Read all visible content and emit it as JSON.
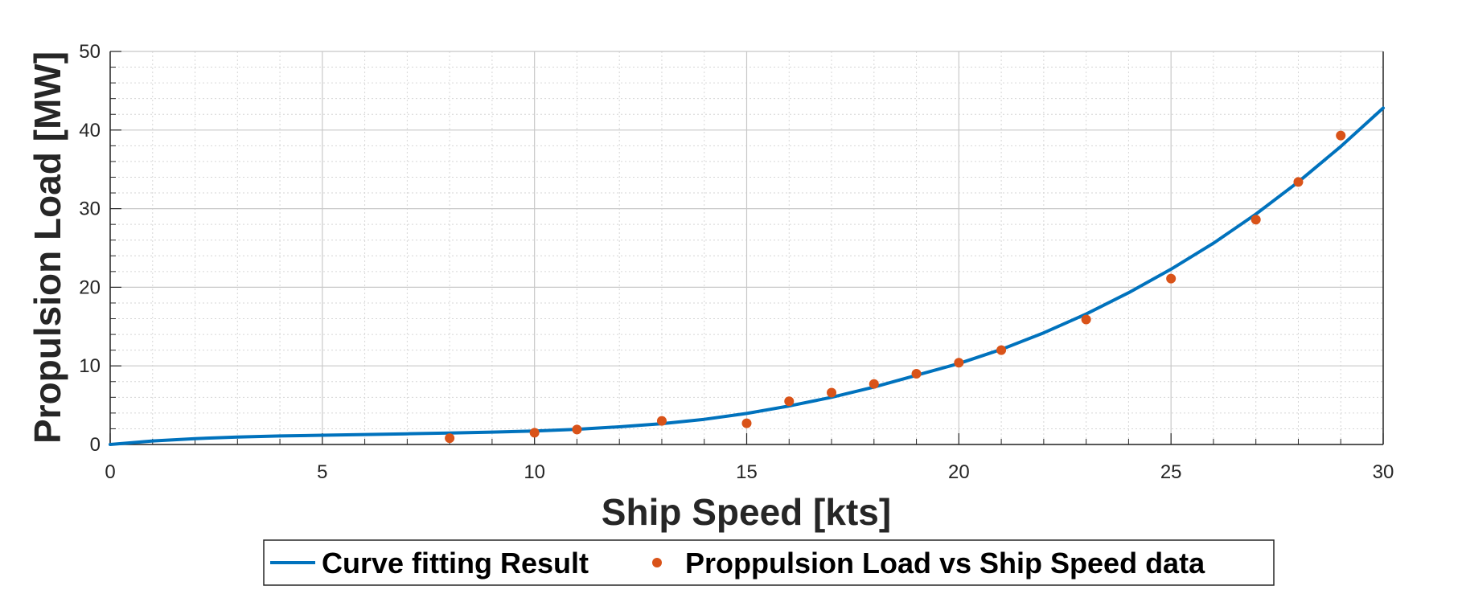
{
  "chart_data": {
    "type": "line",
    "xlabel": "Ship Speed [kts]",
    "ylabel": "Propulsion Load [MW]",
    "xlim": [
      0,
      30
    ],
    "ylim": [
      0,
      50
    ],
    "x_ticks": [
      "0",
      "5",
      "10",
      "15",
      "20",
      "25",
      "30"
    ],
    "y_ticks": [
      "0",
      "10",
      "20",
      "30",
      "40",
      "50"
    ],
    "grid": true,
    "minor_grid": true,
    "legend_position": "bottom-outside",
    "series": [
      {
        "name": "Curve fitting Result",
        "kind": "line",
        "color": "#0072BD",
        "x": [
          0,
          1,
          2,
          3,
          4,
          5,
          6,
          7,
          8,
          9,
          10,
          11,
          12,
          13,
          14,
          15,
          16,
          17,
          18,
          19,
          20,
          21,
          22,
          23,
          24,
          25,
          26,
          27,
          28,
          29,
          30
        ],
        "y": [
          0,
          0.45,
          0.75,
          0.95,
          1.08,
          1.18,
          1.27,
          1.36,
          1.46,
          1.57,
          1.72,
          1.93,
          2.25,
          2.65,
          3.2,
          3.95,
          4.9,
          6.0,
          7.3,
          8.8,
          10.3,
          12.1,
          14.2,
          16.6,
          19.3,
          22.3,
          25.6,
          29.3,
          33.4,
          37.9,
          42.8
        ]
      },
      {
        "name": "Proppulsion Load vs Ship Speed data",
        "kind": "scatter",
        "color": "#D95319",
        "x": [
          8,
          10,
          11,
          13,
          15,
          16,
          17,
          18,
          19,
          20,
          21,
          23,
          25,
          27,
          28,
          29
        ],
        "y": [
          0.8,
          1.5,
          1.9,
          3.0,
          2.7,
          5.5,
          6.6,
          7.7,
          9.0,
          10.4,
          12.0,
          15.9,
          21.1,
          28.6,
          33.4,
          39.3
        ]
      }
    ]
  }
}
